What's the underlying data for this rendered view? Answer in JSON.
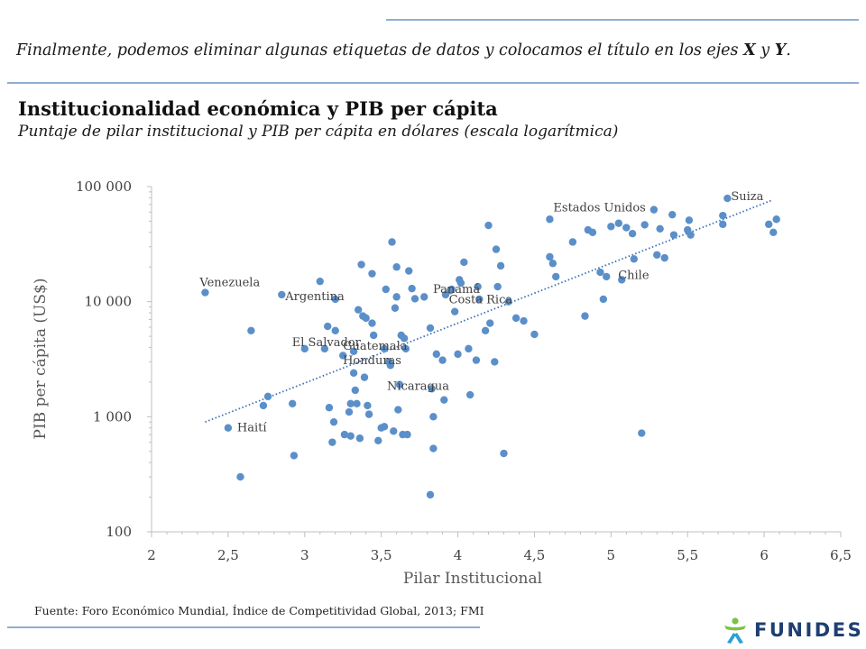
{
  "intro": {
    "text_before": "Finalmente, podemos eliminar algunas etiquetas de datos y colocamos el título en los ejes ",
    "x_letter": "X",
    "conjunction": " y ",
    "y_letter": "Y",
    "period": "."
  },
  "chart_data": {
    "type": "scatter",
    "title": "Institucionalidad  económica y PIB per cápita",
    "subtitle": "Puntaje de pilar institucional y PIB per cápita en dólares (escala logarítmica)",
    "xlabel": "Pilar Institucional",
    "ylabel": "PIB per cápita (US$)",
    "xlim": [
      2,
      6.5
    ],
    "ylim": [
      100,
      100000
    ],
    "y_scale": "log",
    "grid": false,
    "x_ticks": [
      2,
      2.5,
      3,
      3.5,
      4,
      4.5,
      5,
      5.5,
      6,
      6.5
    ],
    "x_tick_labels": [
      "2",
      "2,5",
      "3",
      "3,5",
      "4",
      "4,5",
      "5",
      "5,5",
      "6",
      "6,5"
    ],
    "y_ticks": [
      100,
      1000,
      10000,
      100000
    ],
    "y_tick_labels": [
      "100",
      "1 000",
      "10 000",
      "100 000"
    ],
    "marker_color": "#5b8fc9",
    "trendline": {
      "type": "exponential",
      "style": "dotted",
      "color": "#3a6fb5",
      "x": [
        2.35,
        6.05
      ],
      "y": [
        900,
        76000
      ]
    },
    "points": [
      {
        "x": 2.35,
        "y": 12000,
        "label": "Venezuela"
      },
      {
        "x": 2.5,
        "y": 800,
        "label": "Haití"
      },
      {
        "x": 2.58,
        "y": 300
      },
      {
        "x": 2.65,
        "y": 5600
      },
      {
        "x": 2.73,
        "y": 1250
      },
      {
        "x": 2.76,
        "y": 1500
      },
      {
        "x": 2.85,
        "y": 11500,
        "label": "Argentina"
      },
      {
        "x": 2.92,
        "y": 1300
      },
      {
        "x": 2.93,
        "y": 460
      },
      {
        "x": 3.0,
        "y": 3900,
        "label": "El Salvador"
      },
      {
        "x": 3.1,
        "y": 15000
      },
      {
        "x": 3.13,
        "y": 3900
      },
      {
        "x": 3.15,
        "y": 6100
      },
      {
        "x": 3.16,
        "y": 1200
      },
      {
        "x": 3.18,
        "y": 600
      },
      {
        "x": 3.19,
        "y": 900
      },
      {
        "x": 3.2,
        "y": 5600
      },
      {
        "x": 3.2,
        "y": 10500
      },
      {
        "x": 3.25,
        "y": 3400
      },
      {
        "x": 3.26,
        "y": 700
      },
      {
        "x": 3.29,
        "y": 1100
      },
      {
        "x": 3.3,
        "y": 1300
      },
      {
        "x": 3.3,
        "y": 680
      },
      {
        "x": 3.32,
        "y": 3700,
        "label": "Guatemala"
      },
      {
        "x": 3.32,
        "y": 2400,
        "label": "Honduras"
      },
      {
        "x": 3.33,
        "y": 1700
      },
      {
        "x": 3.34,
        "y": 1300
      },
      {
        "x": 3.35,
        "y": 8500
      },
      {
        "x": 3.36,
        "y": 650
      },
      {
        "x": 3.37,
        "y": 21000
      },
      {
        "x": 3.38,
        "y": 7500
      },
      {
        "x": 3.39,
        "y": 2200
      },
      {
        "x": 3.4,
        "y": 7200
      },
      {
        "x": 3.41,
        "y": 1250
      },
      {
        "x": 3.42,
        "y": 1050
      },
      {
        "x": 3.44,
        "y": 6500
      },
      {
        "x": 3.44,
        "y": 17500
      },
      {
        "x": 3.45,
        "y": 5100
      },
      {
        "x": 3.48,
        "y": 620
      },
      {
        "x": 3.5,
        "y": 800
      },
      {
        "x": 3.52,
        "y": 3900
      },
      {
        "x": 3.52,
        "y": 820
      },
      {
        "x": 3.53,
        "y": 12800
      },
      {
        "x": 3.55,
        "y": 3000
      },
      {
        "x": 3.56,
        "y": 2800
      },
      {
        "x": 3.57,
        "y": 33000
      },
      {
        "x": 3.58,
        "y": 750
      },
      {
        "x": 3.59,
        "y": 8800
      },
      {
        "x": 3.6,
        "y": 11000
      },
      {
        "x": 3.6,
        "y": 20000
      },
      {
        "x": 3.61,
        "y": 1150
      },
      {
        "x": 3.62,
        "y": 1900,
        "label": "Nicaragua"
      },
      {
        "x": 3.63,
        "y": 5100
      },
      {
        "x": 3.64,
        "y": 700
      },
      {
        "x": 3.65,
        "y": 4800
      },
      {
        "x": 3.66,
        "y": 3900
      },
      {
        "x": 3.67,
        "y": 700
      },
      {
        "x": 3.68,
        "y": 18500
      },
      {
        "x": 3.7,
        "y": 13000
      },
      {
        "x": 3.72,
        "y": 10600
      },
      {
        "x": 3.78,
        "y": 11000
      },
      {
        "x": 3.82,
        "y": 5900
      },
      {
        "x": 3.82,
        "y": 210
      },
      {
        "x": 3.83,
        "y": 1750
      },
      {
        "x": 3.84,
        "y": 530
      },
      {
        "x": 3.84,
        "y": 1000
      },
      {
        "x": 3.86,
        "y": 3500
      },
      {
        "x": 3.9,
        "y": 3100
      },
      {
        "x": 3.91,
        "y": 1400
      },
      {
        "x": 3.92,
        "y": 11500,
        "label": "Panamá"
      },
      {
        "x": 3.95,
        "y": 12500
      },
      {
        "x": 3.96,
        "y": 12800
      },
      {
        "x": 3.98,
        "y": 8200
      },
      {
        "x": 4.0,
        "y": 3500
      },
      {
        "x": 4.01,
        "y": 15500
      },
      {
        "x": 4.02,
        "y": 14500
      },
      {
        "x": 4.04,
        "y": 22000
      },
      {
        "x": 4.07,
        "y": 3900
      },
      {
        "x": 4.08,
        "y": 1550
      },
      {
        "x": 4.12,
        "y": 3100
      },
      {
        "x": 4.13,
        "y": 13500
      },
      {
        "x": 4.14,
        "y": 10500
      },
      {
        "x": 4.18,
        "y": 5600
      },
      {
        "x": 4.2,
        "y": 46000
      },
      {
        "x": 4.21,
        "y": 6500
      },
      {
        "x": 4.24,
        "y": 3000
      },
      {
        "x": 4.25,
        "y": 28500
      },
      {
        "x": 4.26,
        "y": 13500
      },
      {
        "x": 4.28,
        "y": 20500
      },
      {
        "x": 4.3,
        "y": 480
      },
      {
        "x": 4.33,
        "y": 10000,
        "label": "Costa Rica"
      },
      {
        "x": 4.38,
        "y": 7200
      },
      {
        "x": 4.43,
        "y": 6800
      },
      {
        "x": 4.5,
        "y": 5200
      },
      {
        "x": 4.6,
        "y": 24500
      },
      {
        "x": 4.6,
        "y": 52000,
        "label": "Estados Unidos"
      },
      {
        "x": 4.62,
        "y": 21500
      },
      {
        "x": 4.64,
        "y": 16500
      },
      {
        "x": 4.75,
        "y": 33000
      },
      {
        "x": 4.83,
        "y": 7500
      },
      {
        "x": 4.85,
        "y": 42000
      },
      {
        "x": 4.88,
        "y": 40000
      },
      {
        "x": 4.93,
        "y": 18000
      },
      {
        "x": 4.95,
        "y": 10500
      },
      {
        "x": 4.97,
        "y": 16500
      },
      {
        "x": 5.0,
        "y": 45000
      },
      {
        "x": 5.05,
        "y": 48000
      },
      {
        "x": 5.07,
        "y": 15500,
        "label": "Chile"
      },
      {
        "x": 5.1,
        "y": 44000
      },
      {
        "x": 5.14,
        "y": 39000
      },
      {
        "x": 5.15,
        "y": 23500
      },
      {
        "x": 5.2,
        "y": 720
      },
      {
        "x": 5.22,
        "y": 46500
      },
      {
        "x": 5.28,
        "y": 63000
      },
      {
        "x": 5.3,
        "y": 25500
      },
      {
        "x": 5.32,
        "y": 43000
      },
      {
        "x": 5.35,
        "y": 24000
      },
      {
        "x": 5.4,
        "y": 57000
      },
      {
        "x": 5.41,
        "y": 38000
      },
      {
        "x": 5.5,
        "y": 42000
      },
      {
        "x": 5.51,
        "y": 51000
      },
      {
        "x": 5.52,
        "y": 38000
      },
      {
        "x": 5.73,
        "y": 56000
      },
      {
        "x": 5.73,
        "y": 47000
      },
      {
        "x": 5.76,
        "y": 79000,
        "label": "Suiza"
      },
      {
        "x": 6.03,
        "y": 47000
      },
      {
        "x": 6.06,
        "y": 40000
      },
      {
        "x": 6.08,
        "y": 52000
      }
    ]
  },
  "source": "Fuente: Foro Económico Mundial, Índice de Competitividad Global, 2013; FMI",
  "logo": {
    "text": "FUNIDES",
    "icon": "funides-logo-icon"
  }
}
